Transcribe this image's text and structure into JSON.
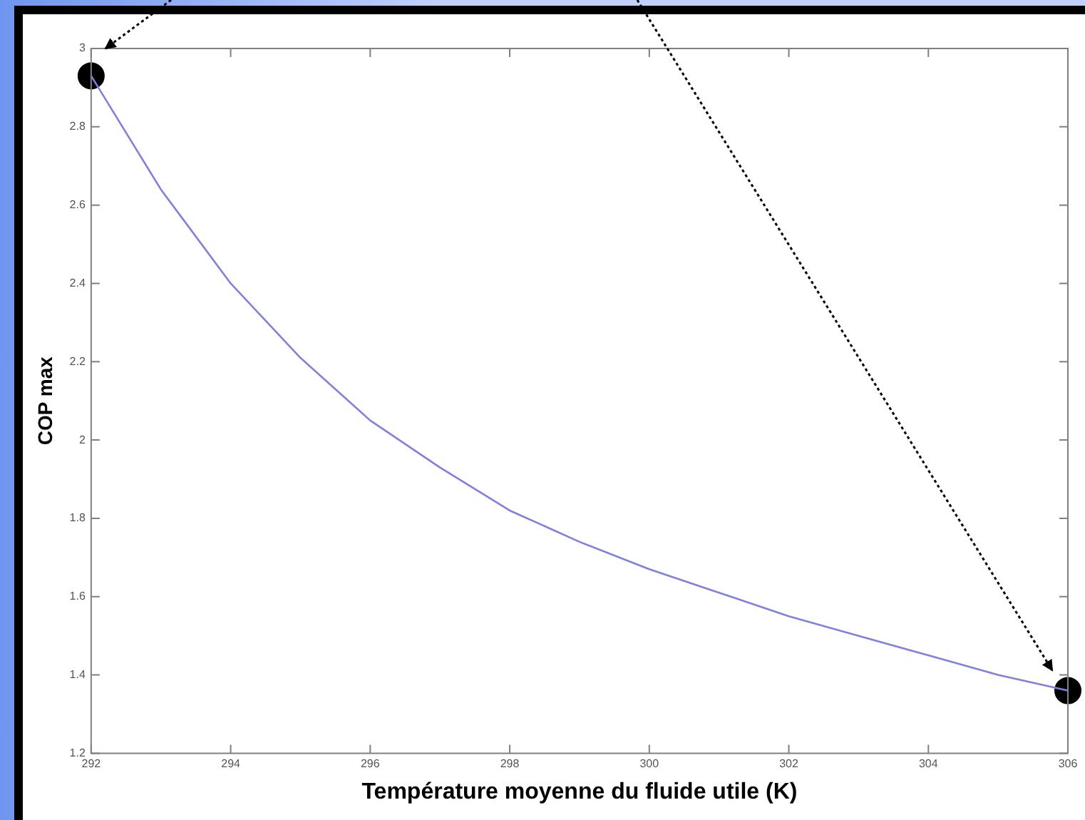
{
  "chart_data": {
    "type": "line",
    "xlabel": "Température moyenne du fluide utile (K)",
    "ylabel": "COP max",
    "xlim": [
      292,
      306
    ],
    "xticks": [
      292,
      294,
      296,
      298,
      300,
      302,
      304,
      306
    ],
    "ylim": [
      1.2,
      3
    ],
    "yticks": [
      1.2,
      1.4,
      1.6,
      1.8,
      2,
      2.2,
      2.4,
      2.6,
      2.8,
      3
    ],
    "grid": false,
    "legend": false,
    "series": [
      {
        "color": "#8080e0",
        "marker": "none",
        "x": [
          292,
          293,
          294,
          295,
          296,
          297,
          298,
          299,
          300,
          301,
          302,
          303,
          304,
          305,
          306
        ],
        "values": [
          2.93,
          2.64,
          2.4,
          2.21,
          2.05,
          1.93,
          1.82,
          1.74,
          1.67,
          1.61,
          1.55,
          1.5,
          1.45,
          1.4,
          1.36
        ]
      },
      {
        "type": "scatter",
        "color": "#000000",
        "marker": "circle",
        "x": [
          292,
          306
        ],
        "values": [
          2.93,
          1.36
        ]
      }
    ]
  }
}
